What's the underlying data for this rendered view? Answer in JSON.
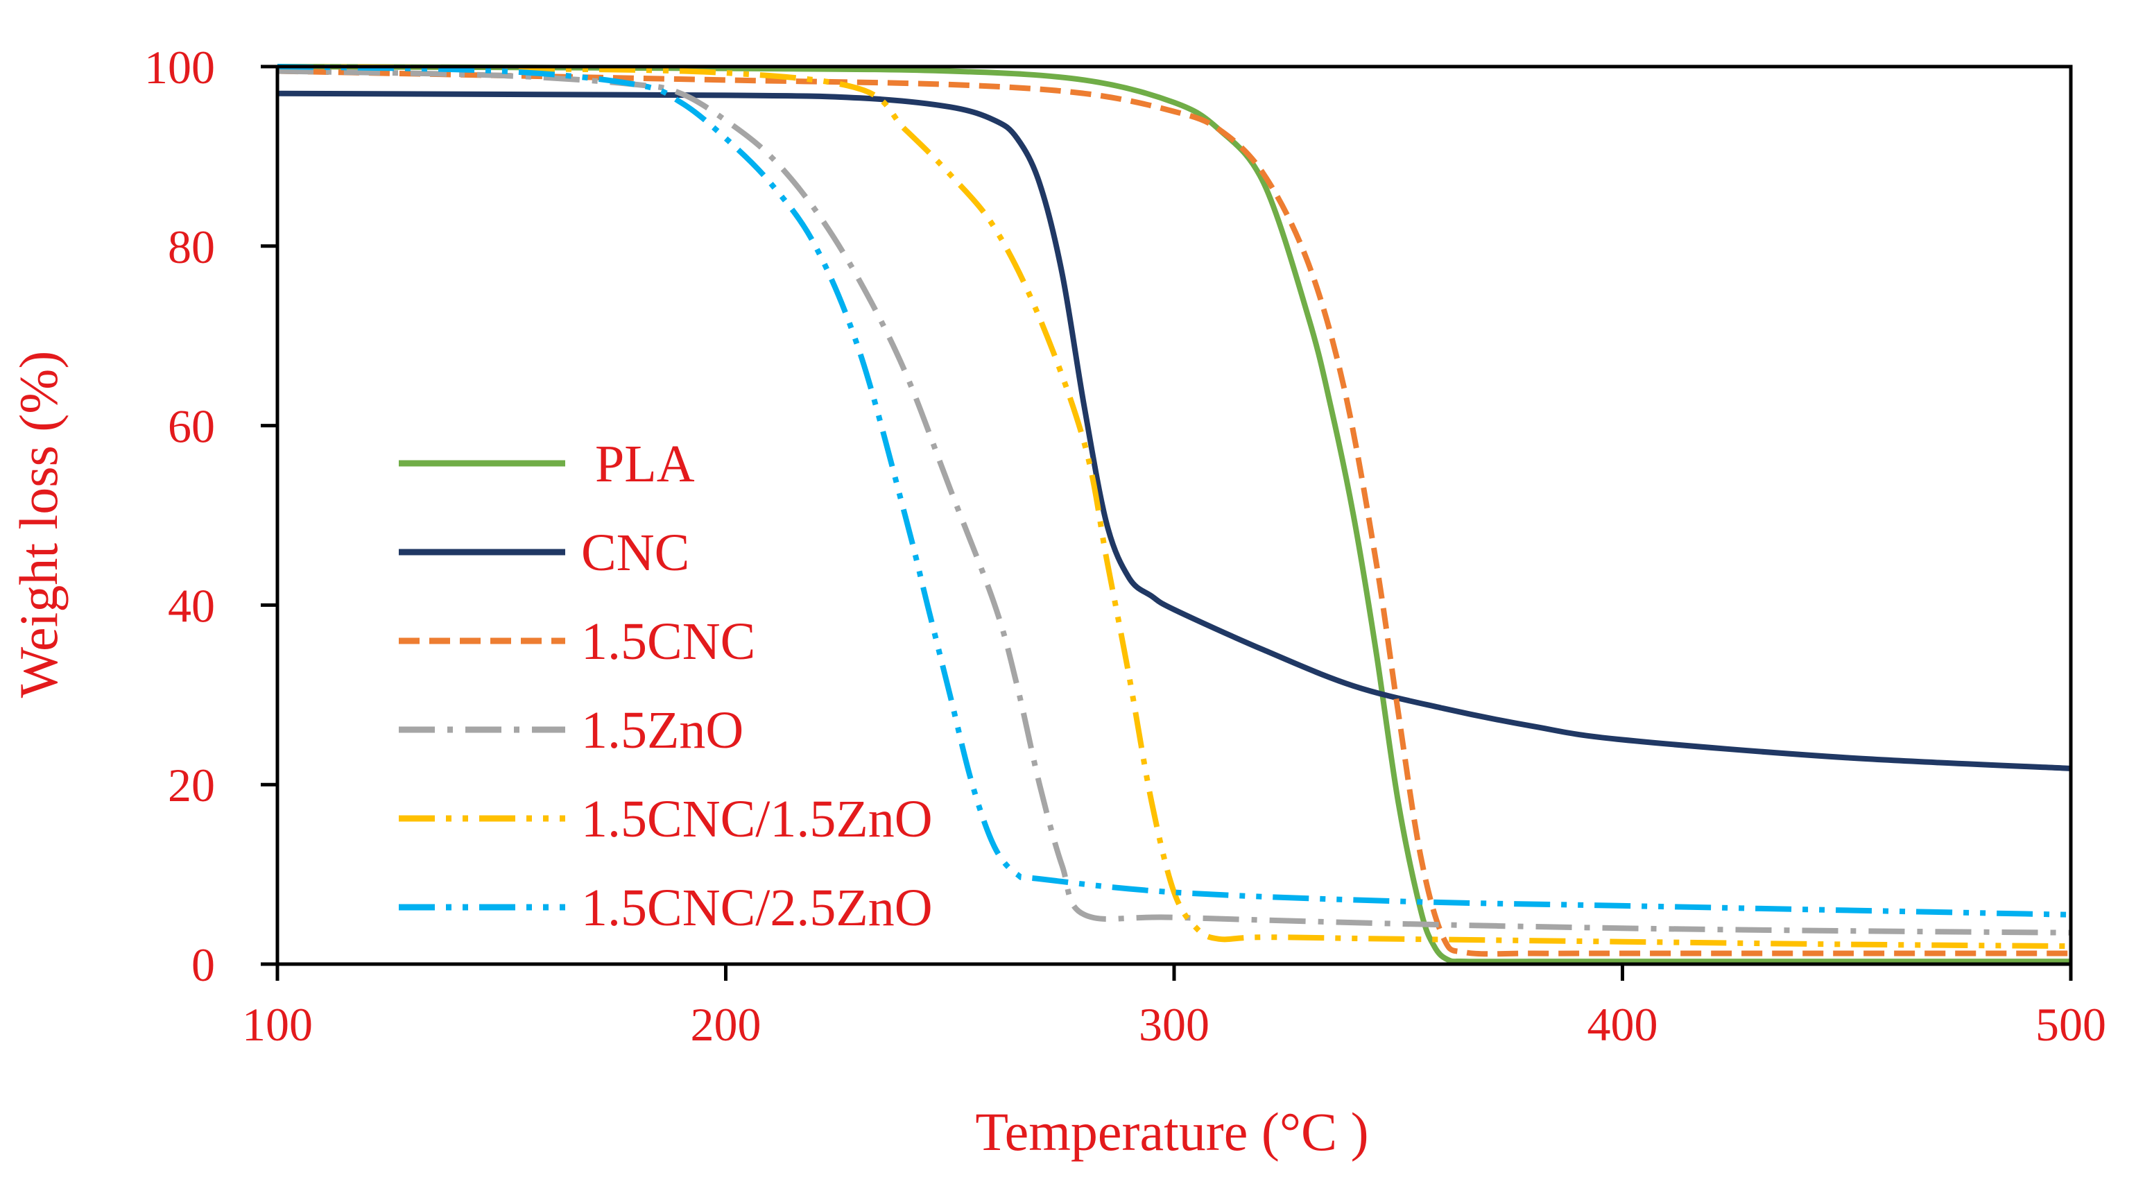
{
  "chart_data": {
    "type": "line",
    "title": "",
    "xlabel": "Temperature (°C )",
    "ylabel": "Weight loss (%)",
    "xlim": [
      100,
      500
    ],
    "ylim": [
      0,
      100
    ],
    "xticks": [
      100,
      200,
      300,
      400,
      500
    ],
    "yticks": [
      0,
      20,
      40,
      60,
      80,
      100
    ],
    "xtick_labels": [
      "100",
      "200",
      "300",
      "400",
      "500"
    ],
    "ytick_labels": [
      "0",
      "20",
      "40",
      "60",
      "80",
      "100"
    ],
    "grid": false,
    "legend_position": "left-middle",
    "series": [
      {
        "name": "PLA",
        "color": "#70ad47",
        "style": "solid",
        "x": [
          100,
          200,
          250,
          280,
          300,
          310,
          320,
          330,
          335,
          340,
          345,
          350,
          355,
          358,
          361,
          365,
          380,
          400,
          450,
          500
        ],
        "y": [
          100,
          99.8,
          99.5,
          98.5,
          96,
          93,
          87,
          72,
          62,
          50,
          35,
          18,
          6,
          2,
          0.5,
          0.3,
          0.3,
          0.3,
          0.3,
          0.3
        ]
      },
      {
        "name": "CNC",
        "color": "#203864",
        "style": "solid",
        "x": [
          100,
          200,
          230,
          250,
          260,
          265,
          270,
          275,
          280,
          285,
          290,
          295,
          300,
          320,
          340,
          360,
          380,
          400,
          450,
          500
        ],
        "y": [
          97,
          96.8,
          96.5,
          95.5,
          94,
          92,
          87,
          77,
          62,
          49,
          43,
          41,
          39.5,
          35,
          31,
          28.5,
          26.5,
          25,
          23,
          21.8
        ]
      },
      {
        "name": "1.5CNC",
        "color": "#ed7d31",
        "style": "dash",
        "x": [
          100,
          150,
          200,
          250,
          280,
          300,
          310,
          320,
          330,
          338,
          345,
          350,
          355,
          360,
          365,
          380,
          400,
          450,
          500
        ],
        "y": [
          99.5,
          99,
          98.5,
          98,
          97,
          95,
          93,
          88,
          78,
          64,
          45,
          28,
          12,
          3,
          1.3,
          1.2,
          1.2,
          1.2,
          1.2
        ]
      },
      {
        "name": "1.5ZnO",
        "color": "#a5a5a5",
        "style": "dashdot",
        "x": [
          100,
          150,
          180,
          190,
          200,
          210,
          220,
          230,
          240,
          250,
          260,
          265,
          270,
          275,
          280,
          300,
          350,
          400,
          450,
          500
        ],
        "y": [
          99.5,
          99,
          98,
          97,
          94,
          90,
          84,
          76,
          66,
          53,
          40,
          31,
          20,
          11,
          5.5,
          5.2,
          4.5,
          4,
          3.7,
          3.5
        ]
      },
      {
        "name": "1.5CNC/1.5ZnO",
        "color": "#ffc000",
        "style": "dashdotdot",
        "x": [
          100,
          150,
          200,
          230,
          240,
          250,
          260,
          270,
          280,
          285,
          290,
          295,
          300,
          305,
          310,
          320,
          350,
          400,
          450,
          500
        ],
        "y": [
          100,
          99.8,
          99.3,
          97.5,
          93,
          88,
          82,
          72,
          58,
          45,
          32,
          18,
          8,
          4,
          2.8,
          3,
          2.8,
          2.5,
          2.2,
          2
        ]
      },
      {
        "name": "1.5CNC/2.5ZnO",
        "color": "#00b0f0",
        "style": "dashdotdot",
        "x": [
          100,
          150,
          180,
          190,
          200,
          210,
          220,
          230,
          240,
          245,
          250,
          255,
          260,
          265,
          270,
          300,
          350,
          400,
          450,
          500
        ],
        "y": [
          100,
          99.5,
          98,
          96,
          92,
          87,
          80,
          68,
          50,
          40,
          30,
          20,
          13,
          10,
          9.5,
          8,
          7,
          6.5,
          6,
          5.5
        ]
      }
    ]
  }
}
